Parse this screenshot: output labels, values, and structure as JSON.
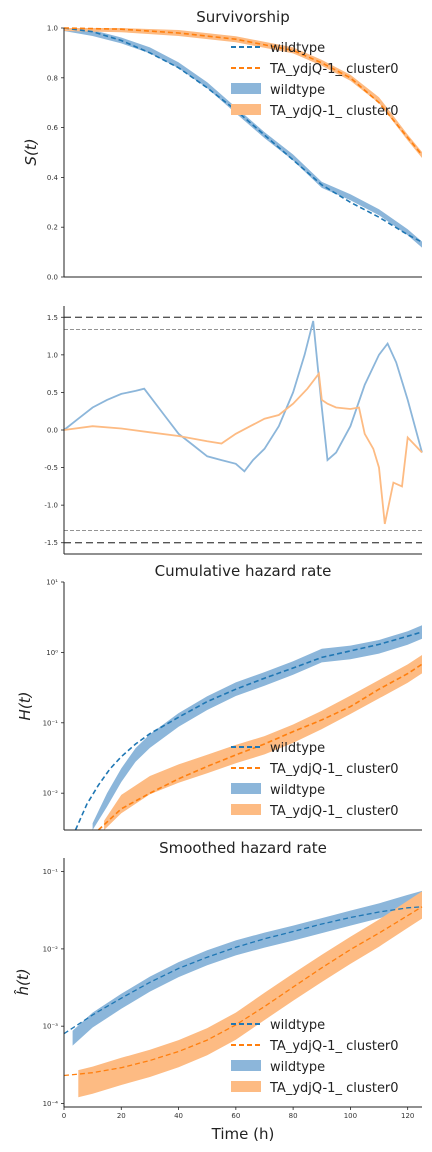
{
  "colors": {
    "wildtype": "#1f77b4",
    "cluster0": "#ff7f0e",
    "band_wildtype": "#8cb6da",
    "band_cluster0": "#fdbb83",
    "ref": "#555555",
    "axis": "#222222"
  },
  "shared_x": {
    "xlabel": "Time (h)",
    "ticks": [
      "0",
      "20",
      "40",
      "60",
      "80",
      "100",
      "120"
    ],
    "xlim": [
      0,
      125
    ]
  },
  "chart_data": [
    {
      "type": "line",
      "title": "Survivorship",
      "ylabel": "S(t)",
      "xlim": [
        0,
        125
      ],
      "ylim": [
        0,
        1.0
      ],
      "yscale": "linear",
      "yticks": [
        "0.0",
        "0.2",
        "0.4",
        "0.6",
        "0.8",
        "1.0"
      ],
      "legend_position": "top-right",
      "legend": [
        "wildtype",
        "TA_ydjQ-1_ cluster0",
        "wildtype",
        "TA_ydjQ-1_ cluster0"
      ],
      "series": [
        {
          "name": "wildtype",
          "kind": "fit",
          "x": [
            0,
            10,
            20,
            30,
            40,
            50,
            60,
            70,
            80,
            90,
            100,
            110,
            120,
            125
          ],
          "y": [
            1.0,
            0.985,
            0.95,
            0.9,
            0.84,
            0.76,
            0.67,
            0.57,
            0.47,
            0.37,
            0.3,
            0.24,
            0.17,
            0.14
          ]
        },
        {
          "name": "TA_ydjQ-1_ cluster0",
          "kind": "fit",
          "x": [
            0,
            20,
            40,
            60,
            80,
            90,
            100,
            110,
            120,
            125
          ],
          "y": [
            1.0,
            0.995,
            0.98,
            0.955,
            0.91,
            0.86,
            0.8,
            0.7,
            0.56,
            0.49
          ]
        },
        {
          "name": "wildtype",
          "kind": "band",
          "x": [
            0,
            10,
            20,
            30,
            40,
            50,
            60,
            70,
            80,
            90,
            100,
            110,
            120,
            125
          ],
          "y": [
            1.0,
            0.98,
            0.95,
            0.91,
            0.85,
            0.77,
            0.67,
            0.57,
            0.48,
            0.37,
            0.32,
            0.26,
            0.18,
            0.13
          ],
          "halfwidth": 0.012
        },
        {
          "name": "TA_ydjQ-1_ cluster0",
          "kind": "band",
          "x": [
            0,
            20,
            40,
            60,
            80,
            90,
            100,
            110,
            120,
            125
          ],
          "y": [
            1.0,
            0.995,
            0.98,
            0.955,
            0.91,
            0.86,
            0.8,
            0.71,
            0.56,
            0.49
          ],
          "halfwidth": 0.012
        }
      ]
    },
    {
      "type": "line",
      "title": "",
      "ylabel": "",
      "xlim": [
        0,
        125
      ],
      "ylim": [
        -1.65,
        1.65
      ],
      "yscale": "linear",
      "yticks": [
        "-1.5",
        "-1.0",
        "-0.5",
        "0.0",
        "0.5",
        "1.0",
        "1.5"
      ],
      "ref_lines": [
        1.5,
        -1.5,
        1.34,
        -1.34
      ],
      "series": [
        {
          "name": "wildtype",
          "x": [
            0,
            5,
            10,
            15,
            20,
            25,
            28,
            30,
            35,
            40,
            45,
            50,
            55,
            60,
            63,
            66,
            70,
            75,
            80,
            84,
            87,
            90,
            92,
            95,
            100,
            105,
            110,
            113,
            116,
            120,
            125
          ],
          "y": [
            0,
            0.15,
            0.3,
            0.4,
            0.48,
            0.52,
            0.55,
            0.45,
            0.2,
            -0.05,
            -0.2,
            -0.35,
            -0.4,
            -0.45,
            -0.55,
            -0.4,
            -0.25,
            0.05,
            0.5,
            1.0,
            1.45,
            0.3,
            -0.4,
            -0.3,
            0.05,
            0.6,
            1.0,
            1.15,
            0.9,
            0.4,
            -0.3
          ]
        },
        {
          "name": "TA_ydjQ-1_ cluster0",
          "x": [
            0,
            10,
            20,
            30,
            40,
            50,
            55,
            60,
            65,
            70,
            75,
            80,
            85,
            89,
            90,
            92,
            95,
            100,
            103,
            105,
            108,
            110,
            112,
            115,
            118,
            120,
            125
          ],
          "y": [
            0,
            0.05,
            0.02,
            -0.03,
            -0.08,
            -0.15,
            -0.18,
            -0.05,
            0.05,
            0.15,
            0.2,
            0.35,
            0.55,
            0.75,
            0.4,
            0.35,
            0.3,
            0.28,
            0.3,
            -0.05,
            -0.25,
            -0.5,
            -1.25,
            -0.7,
            -0.75,
            -0.1,
            -0.3
          ]
        }
      ]
    },
    {
      "type": "line",
      "title": "Cumulative hazard rate",
      "ylabel": "H(t)",
      "xlim": [
        0,
        125
      ],
      "ylim": [
        0.003,
        10
      ],
      "yscale": "log",
      "yticks": [
        "10⁻²",
        "10⁻¹",
        "10⁰",
        "10¹"
      ],
      "legend_position": "lower-right",
      "legend": [
        "wildtype",
        "TA_ydjQ-1_ cluster0",
        "wildtype",
        "TA_ydjQ-1_ cluster0"
      ],
      "series": [
        {
          "name": "wildtype",
          "kind": "fit",
          "x": [
            4,
            8,
            12,
            16,
            20,
            25,
            30,
            40,
            50,
            60,
            70,
            80,
            90,
            100,
            110,
            120,
            125
          ],
          "y": [
            0.003,
            0.007,
            0.013,
            0.022,
            0.033,
            0.05,
            0.07,
            0.12,
            0.2,
            0.3,
            0.43,
            0.6,
            0.85,
            1.05,
            1.3,
            1.7,
            1.95
          ]
        },
        {
          "name": "TA_ydjQ-1_ cluster0",
          "kind": "fit",
          "x": [
            12,
            20,
            30,
            40,
            50,
            60,
            70,
            80,
            90,
            100,
            110,
            120,
            125
          ],
          "y": [
            0.003,
            0.006,
            0.01,
            0.016,
            0.024,
            0.035,
            0.05,
            0.075,
            0.11,
            0.17,
            0.3,
            0.5,
            0.68
          ]
        },
        {
          "name": "wildtype",
          "kind": "band",
          "x": [
            10,
            15,
            20,
            25,
            30,
            40,
            50,
            60,
            70,
            80,
            90,
            100,
            110,
            120,
            125
          ],
          "y": [
            0.003,
            0.008,
            0.018,
            0.035,
            0.055,
            0.11,
            0.19,
            0.3,
            0.42,
            0.6,
            0.9,
            1.0,
            1.2,
            1.6,
            1.95
          ],
          "halfwidth_factor": 1.25
        },
        {
          "name": "TA_ydjQ-1_ cluster0",
          "kind": "band",
          "x": [
            14,
            20,
            30,
            40,
            50,
            60,
            70,
            80,
            90,
            100,
            110,
            120,
            125
          ],
          "y": [
            0.003,
            0.007,
            0.013,
            0.019,
            0.026,
            0.036,
            0.048,
            0.07,
            0.11,
            0.18,
            0.3,
            0.5,
            0.68
          ],
          "halfwidth_factor": 1.35
        }
      ]
    },
    {
      "type": "line",
      "title": "Smoothed hazard rate",
      "ylabel": "ĥ(t)",
      "xlabel": "Time (h)",
      "xlim": [
        0,
        125
      ],
      "ylim": [
        9e-05,
        0.15
      ],
      "yscale": "log",
      "yticks": [
        "10⁻⁴",
        "10⁻³",
        "10⁻²",
        "10⁻¹"
      ],
      "legend_position": "lower-right",
      "legend": [
        "wildtype",
        "TA_ydjQ-1_ cluster0",
        "wildtype",
        "TA_ydjQ-1_ cluster0"
      ],
      "series": [
        {
          "name": "wildtype",
          "kind": "fit",
          "x": [
            0,
            10,
            20,
            30,
            40,
            50,
            60,
            70,
            80,
            90,
            100,
            110,
            120,
            125
          ],
          "y": [
            0.0008,
            0.0014,
            0.0023,
            0.0037,
            0.0056,
            0.0078,
            0.0105,
            0.0135,
            0.0168,
            0.021,
            0.0255,
            0.03,
            0.034,
            0.035
          ]
        },
        {
          "name": "TA_ydjQ-1_ cluster0",
          "kind": "fit",
          "x": [
            0,
            10,
            20,
            30,
            40,
            50,
            60,
            70,
            80,
            90,
            100,
            110,
            120,
            125
          ],
          "y": [
            0.00023,
            0.00025,
            0.00029,
            0.00036,
            0.00047,
            0.00066,
            0.00104,
            0.0018,
            0.0032,
            0.0057,
            0.0098,
            0.016,
            0.027,
            0.035
          ]
        },
        {
          "name": "wildtype",
          "kind": "band",
          "x": [
            3,
            10,
            20,
            30,
            40,
            50,
            60,
            70,
            80,
            90,
            100,
            110,
            120,
            125
          ],
          "y": [
            0.0007,
            0.0012,
            0.0021,
            0.0035,
            0.0054,
            0.0077,
            0.0103,
            0.013,
            0.016,
            0.02,
            0.025,
            0.031,
            0.04,
            0.045
          ],
          "halfwidth_factor": 1.25
        },
        {
          "name": "TA_ydjQ-1_ cluster0",
          "kind": "band",
          "x": [
            5,
            10,
            20,
            30,
            40,
            50,
            60,
            70,
            80,
            90,
            100,
            110,
            120,
            125
          ],
          "y": [
            0.00018,
            0.0002,
            0.00026,
            0.00033,
            0.00044,
            0.00063,
            0.001,
            0.0018,
            0.0032,
            0.0056,
            0.0096,
            0.016,
            0.028,
            0.037
          ],
          "halfwidth_factor": 1.5
        }
      ]
    }
  ]
}
